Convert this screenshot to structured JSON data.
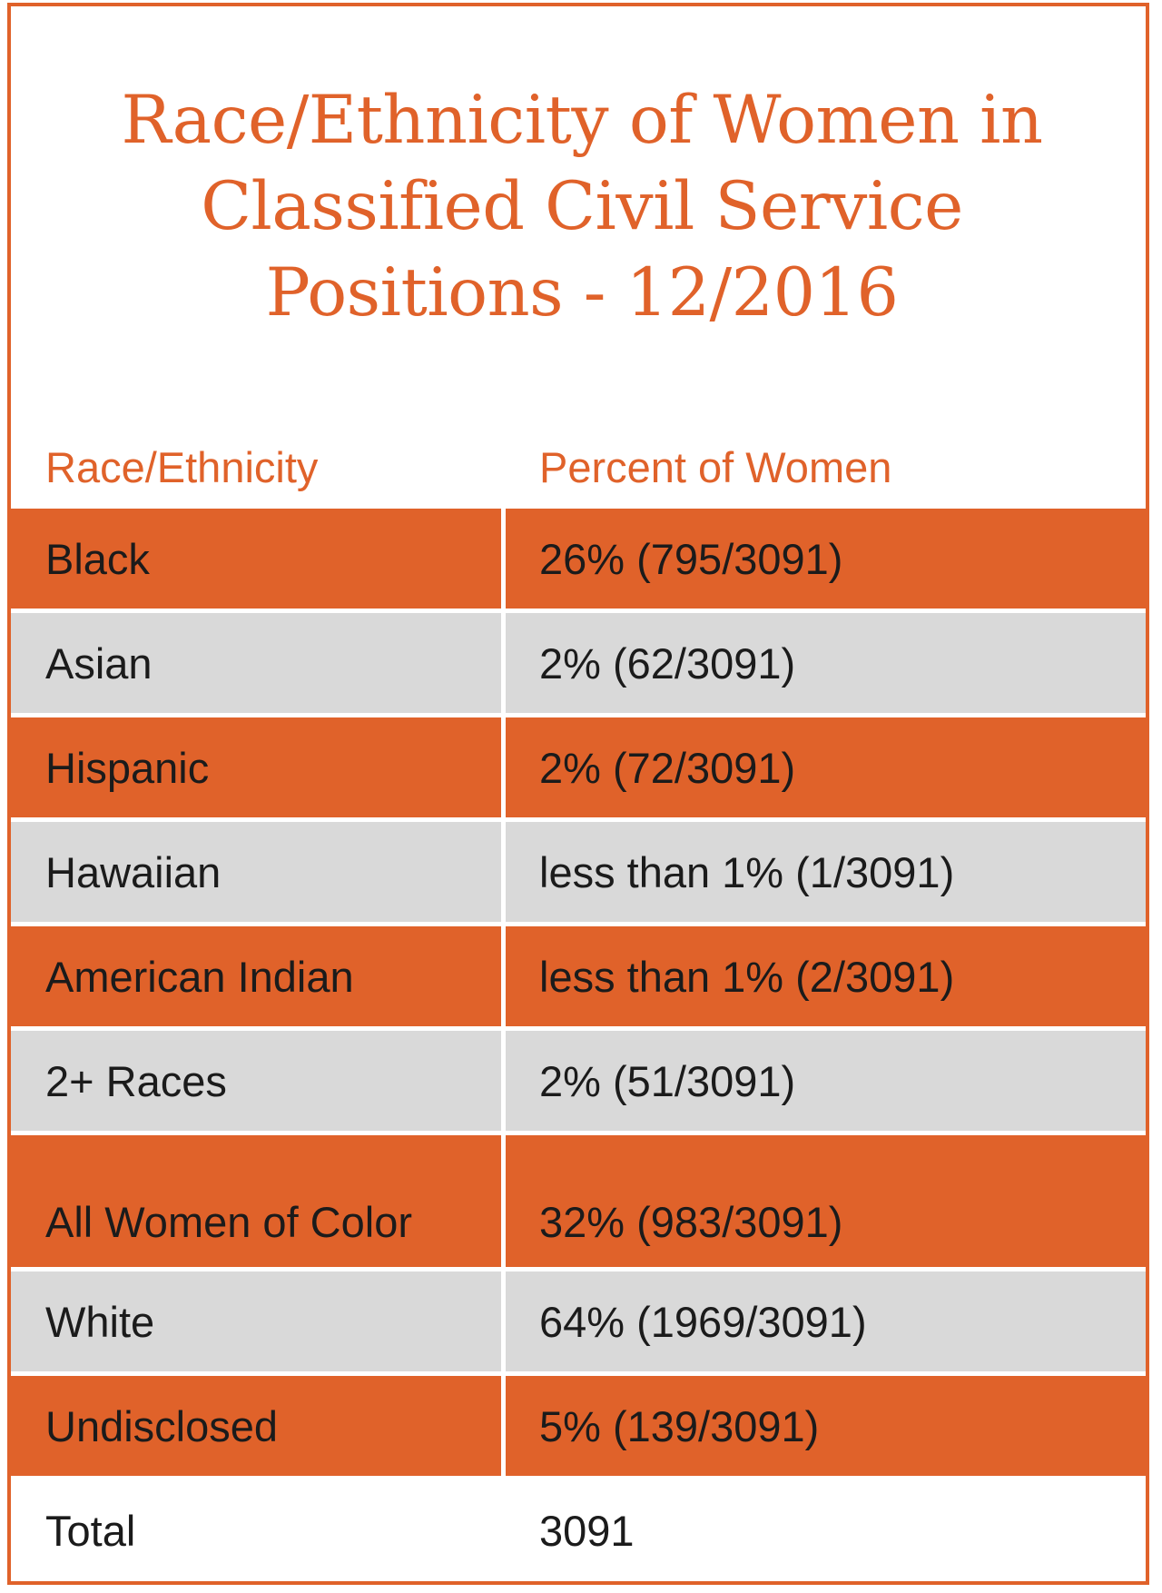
{
  "title": {
    "line1": "Race/Ethnicity of Women in",
    "line2": "Classified Civil Service",
    "line3": "Positions - 12/2016"
  },
  "table": {
    "headers": [
      "Race/Ethnicity",
      "Percent of Women"
    ],
    "rows": [
      {
        "label": "Black",
        "value": "26% (795/3091)",
        "style": "orange"
      },
      {
        "label": "Asian",
        "value": "2% (62/3091)",
        "style": "gray"
      },
      {
        "label": "Hispanic",
        "value": "2% (72/3091)",
        "style": "orange"
      },
      {
        "label": "Hawaiian",
        "value": "less than 1% (1/3091)",
        "style": "gray"
      },
      {
        "label": "American Indian",
        "value": "less than 1% (2/3091)",
        "style": "orange"
      },
      {
        "label": "2+ Races",
        "value": "2% (51/3091)",
        "style": "gray"
      },
      {
        "label": "All Women of Color",
        "value": "32% (983/3091)",
        "style": "orange"
      },
      {
        "label": "White",
        "value": "64% (1969/3091)",
        "style": "gray"
      },
      {
        "label": "Undisclosed",
        "value": "5% (139/3091)",
        "style": "orange"
      },
      {
        "label": "Total",
        "value": "3091",
        "style": "white"
      }
    ]
  },
  "colors": {
    "accent": "#e0622a",
    "row_gray": "#d9d9d9",
    "text": "#1b1b1b"
  }
}
